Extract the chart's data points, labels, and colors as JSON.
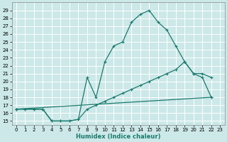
{
  "xlabel": "Humidex (Indice chaleur)",
  "bg_color": "#cce8e8",
  "grid_color": "#ffffff",
  "line_color": "#1a7a6e",
  "xlim": [
    -0.5,
    23.5
  ],
  "ylim": [
    14.5,
    30.0
  ],
  "xticks": [
    0,
    1,
    2,
    3,
    4,
    5,
    6,
    7,
    8,
    9,
    10,
    11,
    12,
    13,
    14,
    15,
    16,
    17,
    18,
    19,
    20,
    21,
    22,
    23
  ],
  "yticks": [
    15,
    16,
    17,
    18,
    19,
    20,
    21,
    22,
    23,
    24,
    25,
    26,
    27,
    28,
    29
  ],
  "curve1_x": [
    0,
    1,
    2,
    3,
    4,
    5,
    6,
    7,
    8,
    9,
    10,
    11,
    12,
    13,
    14,
    15,
    16,
    17,
    18,
    19,
    20,
    21,
    22
  ],
  "curve1_y": [
    16.5,
    16.5,
    16.5,
    16.5,
    15.0,
    15.0,
    15.0,
    15.2,
    20.5,
    18.0,
    22.5,
    24.5,
    25.0,
    27.5,
    28.5,
    29.0,
    27.5,
    26.5,
    24.5,
    22.5,
    21.0,
    21.0,
    20.5
  ],
  "curve2_x": [
    0,
    1,
    2,
    3,
    4,
    5,
    6,
    7,
    8,
    9,
    10,
    11,
    12,
    13,
    14,
    15,
    16,
    17,
    18,
    19,
    20,
    21,
    22
  ],
  "curve2_y": [
    16.5,
    16.5,
    16.5,
    16.5,
    15.0,
    15.0,
    15.0,
    15.2,
    16.5,
    17.0,
    17.5,
    18.0,
    18.5,
    19.0,
    19.5,
    20.0,
    20.5,
    21.0,
    21.5,
    22.5,
    21.0,
    20.5,
    18.0
  ],
  "curve3_x": [
    0,
    22
  ],
  "curve3_y": [
    16.5,
    18.0
  ]
}
